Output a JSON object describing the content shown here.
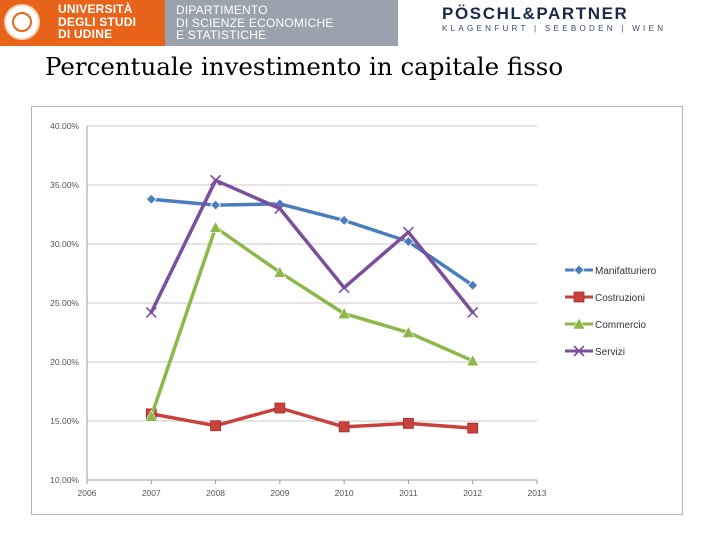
{
  "header": {
    "university": [
      "UNIVERSITÀ",
      "DEGLI STUDI",
      "DI UDINE"
    ],
    "department": [
      "DIPARTIMENTO",
      "DI SCIENZE ECONOMICHE",
      "E STATISTICHE"
    ],
    "firm_name": "PÖSCHL&PARTNER",
    "firm_locations": "KLAGENFURT | SEEBODEN | WIEN",
    "colors": {
      "university": "#e8641b",
      "department": "#9aa3ad",
      "firm": "#1b2a4a"
    }
  },
  "page": {
    "title": "Percentuale investimento in capitale fisso"
  },
  "chart_data": {
    "type": "line",
    "title": "Percentuale investimento in capitale fisso",
    "xlabel": "",
    "ylabel": "",
    "x_ticks": [
      "2006",
      "2007",
      "2008",
      "2009",
      "2010",
      "2011",
      "2012",
      "2013"
    ],
    "x": [
      2007,
      2008,
      2009,
      2010,
      2011,
      2012
    ],
    "xlim": [
      2006,
      2013
    ],
    "y_ticks": [
      "40.00%",
      "35.00%",
      "30.00%",
      "25.00%",
      "20.00%",
      "15.00%",
      "10.00%"
    ],
    "ylim": [
      10,
      40
    ],
    "grid": "horizontal",
    "legend": "right",
    "series": [
      {
        "name": "Manifatturiero",
        "color": "#4a7dbf",
        "marker": "diamond",
        "values": [
          33.8,
          33.3,
          33.4,
          32.0,
          30.2,
          26.5
        ]
      },
      {
        "name": "Costruzioni",
        "color": "#c8413c",
        "marker": "square",
        "values": [
          15.6,
          14.6,
          16.1,
          14.5,
          14.8,
          14.4
        ]
      },
      {
        "name": "Commercio",
        "color": "#8db748",
        "marker": "triangle",
        "values": [
          15.4,
          31.4,
          27.6,
          24.1,
          22.5,
          20.1
        ]
      },
      {
        "name": "Servizi",
        "color": "#7c4f9c",
        "marker": "x",
        "values": [
          24.2,
          35.4,
          33.0,
          26.3,
          31.0,
          24.2
        ]
      }
    ]
  }
}
